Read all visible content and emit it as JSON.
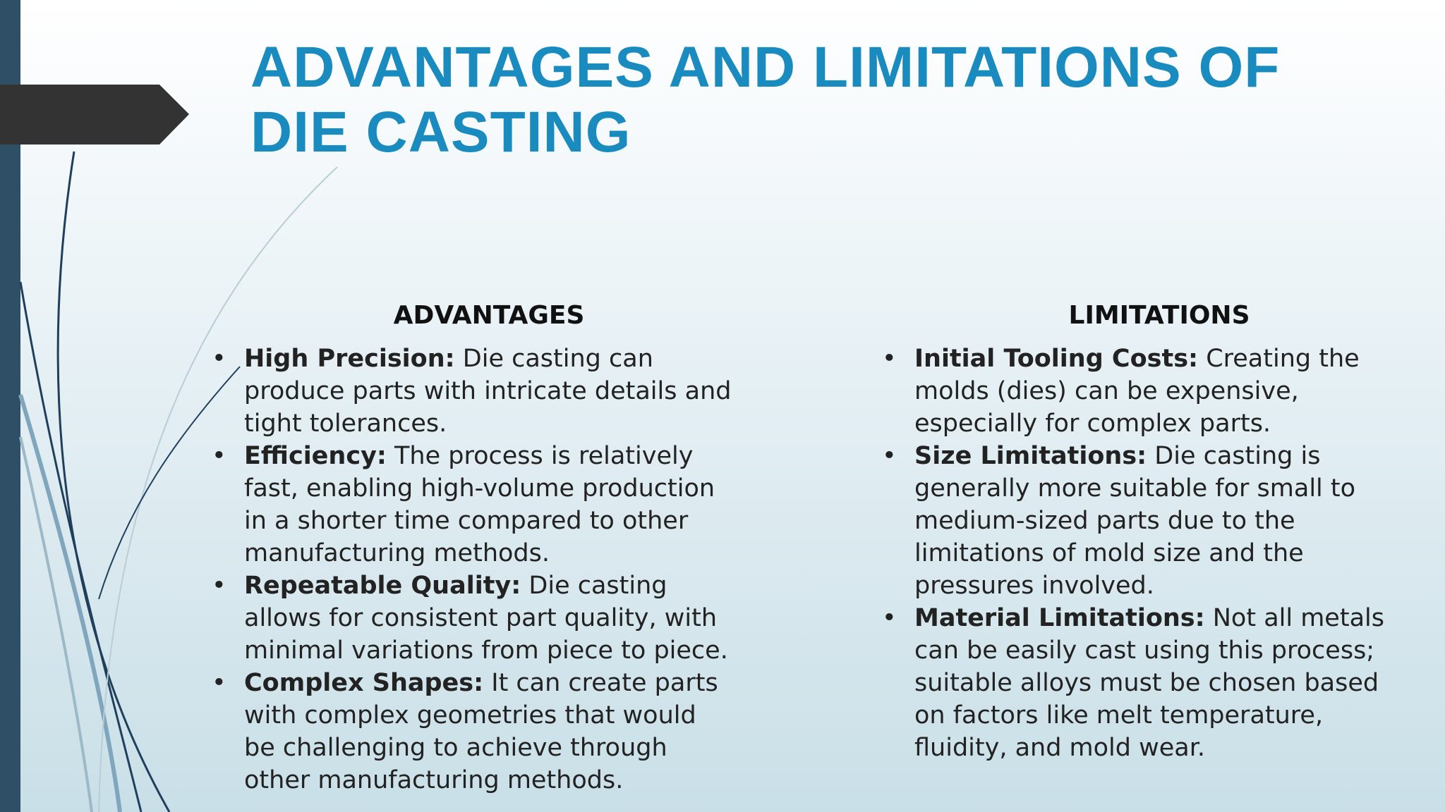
{
  "title": "ADVANTAGES AND LIMITATIONS OF DIE CASTING",
  "columns": [
    {
      "heading": "ADVANTAGES",
      "items": [
        {
          "term": "High Precision:",
          "text": "Die casting can produce parts with intricate details and tight tolerances."
        },
        {
          "term": "Efficiency:",
          "text": "The process is relatively fast, enabling high-volume production in a shorter time compared to other manufacturing methods."
        },
        {
          "term": "Repeatable Quality:",
          "text": "Die casting allows for consistent part quality, with minimal variations from piece to piece."
        },
        {
          "term": "Complex Shapes:",
          "text": "It can create parts with complex geometries that would be challenging to achieve through other manufacturing methods."
        }
      ]
    },
    {
      "heading": "LIMITATIONS",
      "items": [
        {
          "term": "Initial Tooling Costs:",
          "text": "Creating the molds (dies) can be expensive, especially for complex parts."
        },
        {
          "term": "Size Limitations:",
          "text": "Die casting is generally more suitable for small to medium-sized parts due to the limitations of mold size and the pressures involved."
        },
        {
          "term": "Material Limitations:",
          "text": "Not all metals can be easily cast using this process; suitable alloys must be chosen based on factors like melt temperature, fluidity, and mold wear."
        }
      ]
    }
  ]
}
